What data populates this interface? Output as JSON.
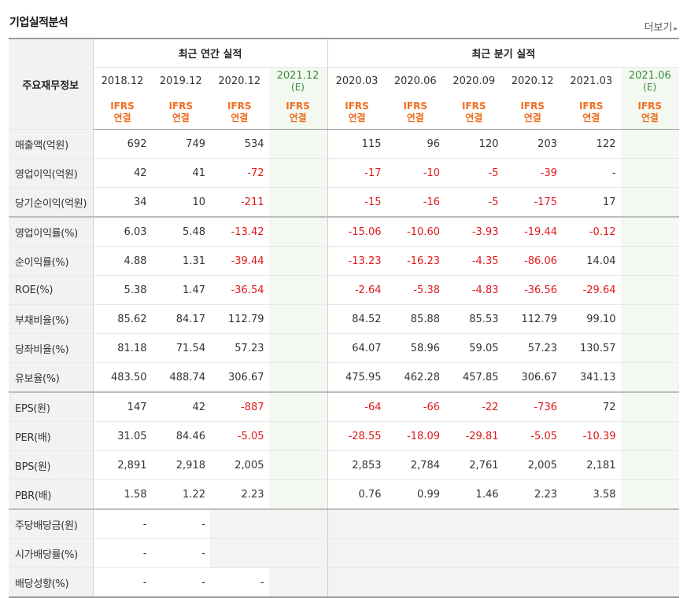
{
  "title": "기업실적분석",
  "more_label": "더보기",
  "groups": {
    "annual": "최근 연간 실적",
    "quarterly": "최근 분기 실적"
  },
  "head_label": "주요재무정보",
  "periods": [
    {
      "label": "2018.12",
      "est": ""
    },
    {
      "label": "2019.12",
      "est": ""
    },
    {
      "label": "2020.12",
      "est": ""
    },
    {
      "label": "2021.12",
      "est": "(E)"
    },
    {
      "label": "2020.03",
      "est": ""
    },
    {
      "label": "2020.06",
      "est": ""
    },
    {
      "label": "2020.09",
      "est": ""
    },
    {
      "label": "2020.12",
      "est": ""
    },
    {
      "label": "2021.03",
      "est": ""
    },
    {
      "label": "2021.06",
      "est": "(E)"
    }
  ],
  "accounting": {
    "line1": "IFRS",
    "line2": "연결"
  },
  "rows": [
    {
      "label": "매출액(억원)",
      "values": [
        "692",
        "749",
        "534",
        "",
        "115",
        "96",
        "120",
        "203",
        "122",
        ""
      ]
    },
    {
      "label": "영업이익(억원)",
      "values": [
        "42",
        "41",
        "-72",
        "",
        "-17",
        "-10",
        "-5",
        "-39",
        "-",
        ""
      ]
    },
    {
      "label": "당기순이익(억원)",
      "values": [
        "34",
        "10",
        "-211",
        "",
        "-15",
        "-16",
        "-5",
        "-175",
        "17",
        ""
      ]
    },
    {
      "label": "영업이익률(%)",
      "values": [
        "6.03",
        "5.48",
        "-13.42",
        "",
        "-15.06",
        "-10.60",
        "-3.93",
        "-19.44",
        "-0.12",
        ""
      ]
    },
    {
      "label": "순이익률(%)",
      "values": [
        "4.88",
        "1.31",
        "-39.44",
        "",
        "-13.23",
        "-16.23",
        "-4.35",
        "-86.06",
        "14.04",
        ""
      ]
    },
    {
      "label": "ROE(%)",
      "values": [
        "5.38",
        "1.47",
        "-36.54",
        "",
        "-2.64",
        "-5.38",
        "-4.83",
        "-36.56",
        "-29.64",
        ""
      ]
    },
    {
      "label": "부채비율(%)",
      "values": [
        "85.62",
        "84.17",
        "112.79",
        "",
        "84.52",
        "85.88",
        "85.53",
        "112.79",
        "99.10",
        ""
      ]
    },
    {
      "label": "당좌비율(%)",
      "values": [
        "81.18",
        "71.54",
        "57.23",
        "",
        "64.07",
        "58.96",
        "59.05",
        "57.23",
        "130.57",
        ""
      ]
    },
    {
      "label": "유보율(%)",
      "values": [
        "483.50",
        "488.74",
        "306.67",
        "",
        "475.95",
        "462.28",
        "457.85",
        "306.67",
        "341.13",
        ""
      ]
    },
    {
      "label": "EPS(원)",
      "values": [
        "147",
        "42",
        "-887",
        "",
        "-64",
        "-66",
        "-22",
        "-736",
        "72",
        ""
      ]
    },
    {
      "label": "PER(배)",
      "values": [
        "31.05",
        "84.46",
        "-5.05",
        "",
        "-28.55",
        "-18.09",
        "-29.81",
        "-5.05",
        "-10.39",
        ""
      ]
    },
    {
      "label": "BPS(원)",
      "values": [
        "2,891",
        "2,918",
        "2,005",
        "",
        "2,853",
        "2,784",
        "2,761",
        "2,005",
        "2,181",
        ""
      ]
    },
    {
      "label": "PBR(배)",
      "values": [
        "1.58",
        "1.22",
        "2.23",
        "",
        "0.76",
        "0.99",
        "1.46",
        "2.23",
        "3.58",
        ""
      ]
    },
    {
      "label": "주당배당금(원)",
      "values": [
        "-",
        "-",
        "",
        "",
        "",
        "",
        "",
        "",
        "",
        ""
      ]
    },
    {
      "label": "시가배당률(%)",
      "values": [
        "-",
        "-",
        "",
        "",
        "",
        "",
        "",
        "",
        "",
        ""
      ]
    },
    {
      "label": "배당성향(%)",
      "values": [
        "-",
        "-",
        "-",
        "",
        "",
        "",
        "",
        "",
        "",
        ""
      ]
    }
  ],
  "colors": {
    "negative": "#e0191a",
    "accounting": "#f26d1f",
    "estimate": "#3c8c3c",
    "estimate_bg": "#f3f8f1"
  }
}
